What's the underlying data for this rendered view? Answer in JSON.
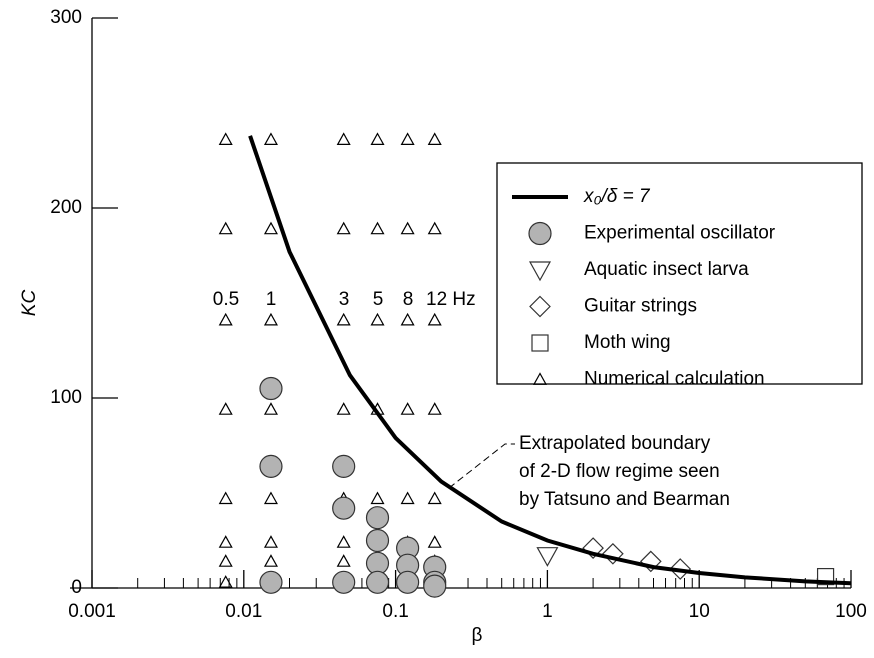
{
  "chart_data": {
    "type": "scatter",
    "xlabel": "β",
    "ylabel": "KC",
    "xscale": "log",
    "xlim": [
      0.001,
      100
    ],
    "xticks": [
      0.001,
      0.01,
      0.1,
      1,
      10,
      100
    ],
    "ylim": [
      0,
      300
    ],
    "yticks": [
      0,
      100,
      200,
      300
    ],
    "series": [
      {
        "name": "x₀/δ = 7",
        "marker": "line",
        "color": "#000000",
        "x": [
          0.011,
          0.02,
          0.05,
          0.1,
          0.2,
          0.5,
          1,
          2,
          5,
          10,
          20,
          50,
          100
        ],
        "values": [
          238,
          177,
          112,
          79,
          56,
          35,
          25,
          18,
          11,
          7.9,
          5.6,
          3.5,
          2.5
        ]
      },
      {
        "name": "Experimental oscillator",
        "marker": "circle",
        "color": "#b3b3b3",
        "x": [
          0.0151,
          0.0151,
          0.0151,
          0.0455,
          0.0455,
          0.0455,
          0.076,
          0.076,
          0.076,
          0.076,
          0.12,
          0.12,
          0.12,
          0.181,
          0.181,
          0.181
        ],
        "values": [
          105,
          64,
          3,
          64,
          42,
          3,
          37,
          25,
          13,
          3,
          21,
          12,
          3,
          11,
          3,
          1
        ]
      },
      {
        "name": "Aquatic insect larva",
        "marker": "triangle-down",
        "color": "#ffffff",
        "x": [
          1.0
        ],
        "values": [
          17
        ]
      },
      {
        "name": "Guitar strings",
        "marker": "diamond",
        "color": "#ffffff",
        "x": [
          2.0,
          2.7,
          4.8,
          7.5
        ],
        "values": [
          21,
          18,
          14,
          10
        ]
      },
      {
        "name": "Moth wing",
        "marker": "square",
        "color": "#ffffff",
        "x": [
          68
        ],
        "values": [
          6
        ]
      },
      {
        "name": "Numerical calculation",
        "marker": "triangle",
        "color": "#ffffff",
        "x": [
          0.0076,
          0.0076,
          0.0076,
          0.0076,
          0.0076,
          0.0076,
          0.0076,
          0.0076,
          0.0151,
          0.0151,
          0.0151,
          0.0151,
          0.0151,
          0.0151,
          0.0151,
          0.0151,
          0.0455,
          0.0455,
          0.0455,
          0.0455,
          0.0455,
          0.0455,
          0.0455,
          0.0455,
          0.076,
          0.076,
          0.076,
          0.076,
          0.076,
          0.076,
          0.076,
          0.076,
          0.12,
          0.12,
          0.12,
          0.12,
          0.12,
          0.12,
          0.12,
          0.12,
          0.181,
          0.181,
          0.181,
          0.181,
          0.181,
          0.181,
          0.181,
          0.181
        ],
        "values": [
          236,
          189,
          141,
          94,
          47,
          24,
          14,
          3,
          236,
          189,
          141,
          94,
          47,
          24,
          14,
          3,
          236,
          189,
          141,
          94,
          47,
          24,
          14,
          3,
          236,
          189,
          141,
          94,
          47,
          24,
          14,
          3,
          236,
          189,
          141,
          94,
          47,
          24,
          14,
          3,
          236,
          189,
          141,
          94,
          47,
          24,
          14,
          3
        ]
      }
    ],
    "frequency_labels": [
      "0.5",
      "1",
      "3",
      "5",
      "8",
      "12 Hz"
    ],
    "annotation": [
      "Extrapolated boundary",
      "of 2-D flow regime seen",
      "by Tatsuno and Bearman"
    ],
    "legend": "upper right"
  }
}
